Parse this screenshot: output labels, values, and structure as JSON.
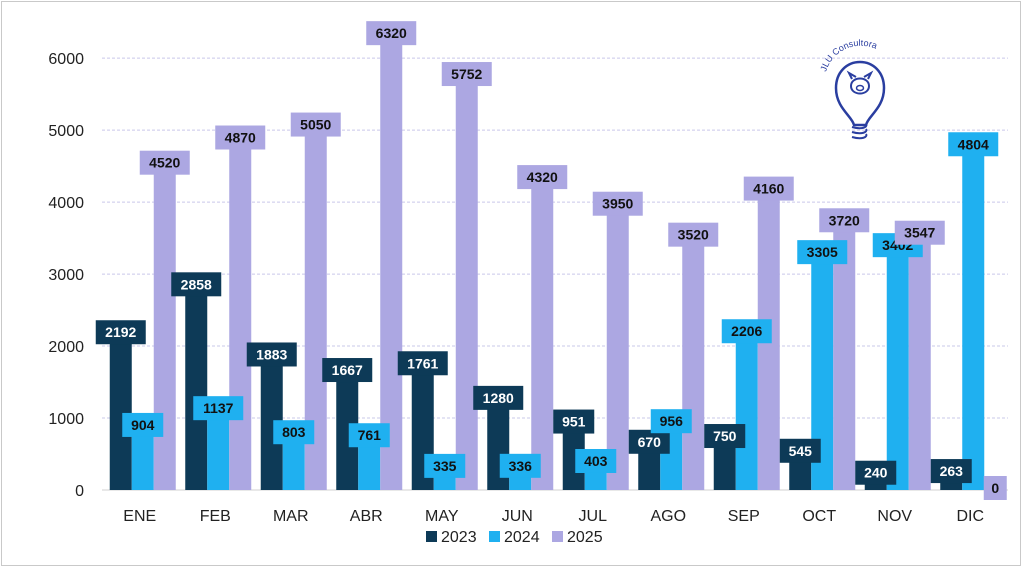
{
  "chart_data": {
    "type": "bar",
    "categories": [
      "ENE",
      "FEB",
      "MAR",
      "ABR",
      "MAY",
      "JUN",
      "JUL",
      "AGO",
      "SEP",
      "OCT",
      "NOV",
      "DIC"
    ],
    "series": [
      {
        "name": "2023",
        "color": "#0d3a57",
        "values": [
          2192,
          2858,
          1883,
          1667,
          1761,
          1280,
          951,
          670,
          750,
          545,
          240,
          263
        ]
      },
      {
        "name": "2024",
        "color": "#1fb0f0",
        "values": [
          904,
          1137,
          803,
          761,
          335,
          336,
          403,
          956,
          2206,
          3305,
          3402,
          4804
        ]
      },
      {
        "name": "2025",
        "color": "#aca7e2",
        "values": [
          4520,
          4870,
          5050,
          6320,
          5752,
          4320,
          3950,
          3520,
          4160,
          3720,
          3547,
          0
        ]
      }
    ],
    "yticks": [
      0,
      1000,
      2000,
      3000,
      4000,
      5000,
      6000
    ],
    "ylim": [
      0,
      6600
    ],
    "grid": true,
    "legend": "bottom",
    "title": "",
    "xlabel": "",
    "ylabel": ""
  },
  "logo": {
    "text": "JLU Consultora",
    "color": "#2a3ea0"
  }
}
